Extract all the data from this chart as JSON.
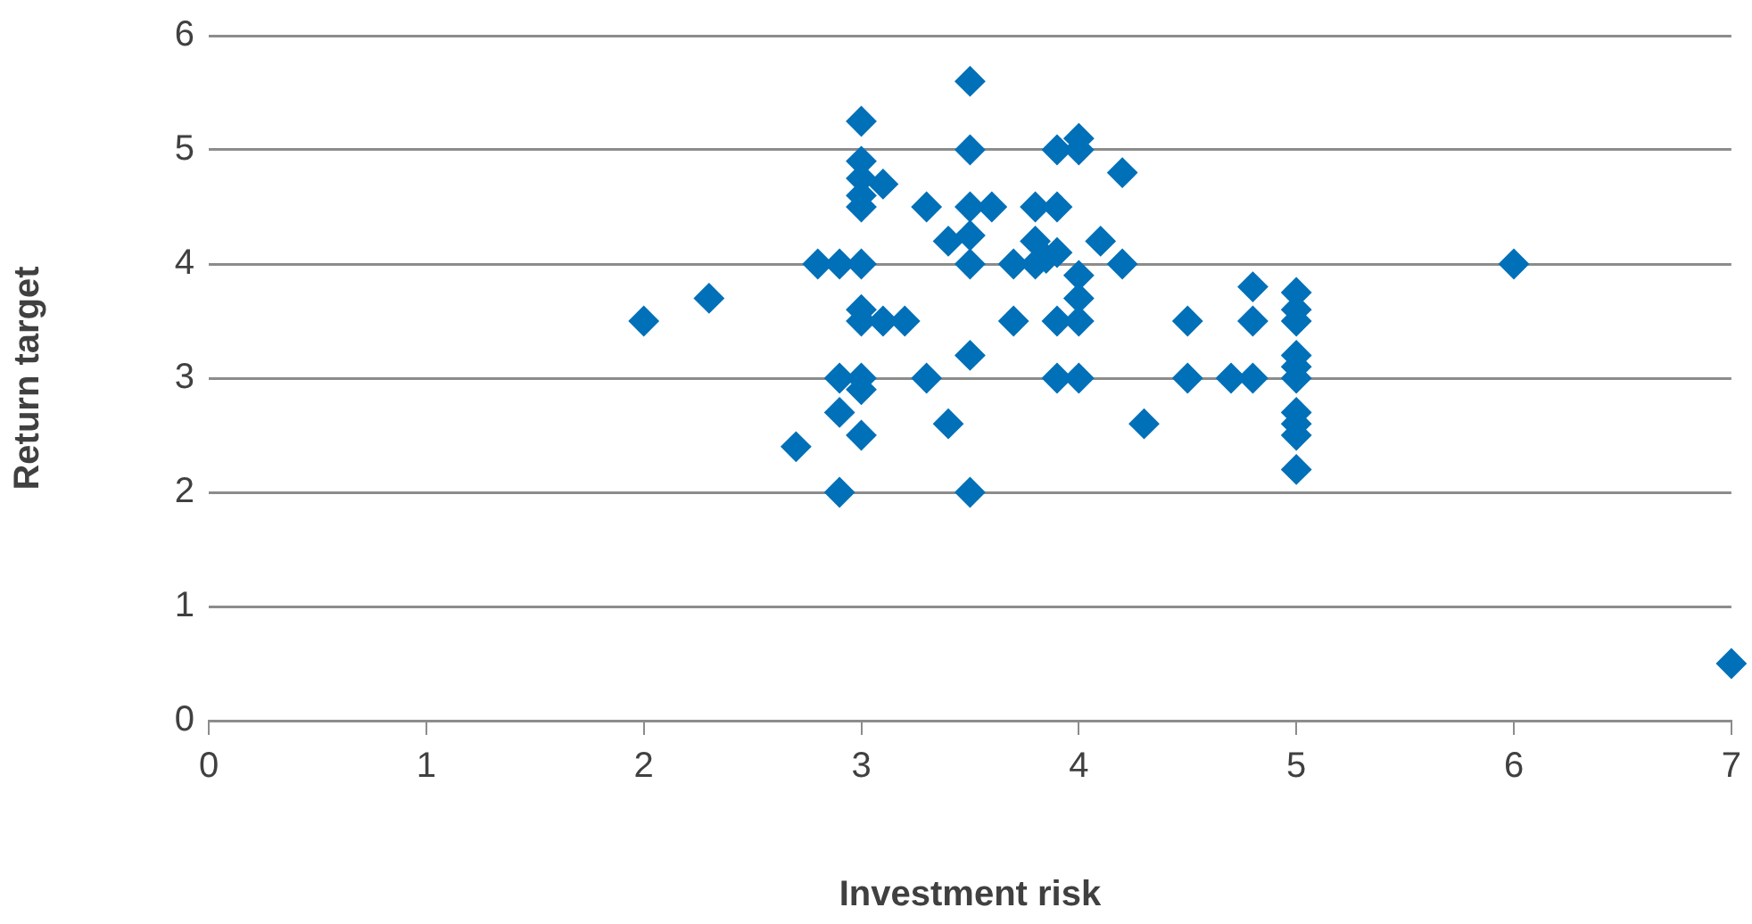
{
  "chart_data": {
    "type": "scatter",
    "xlabel": "Investment risk",
    "ylabel": "Return target",
    "xlim": [
      0,
      7
    ],
    "xticks": [
      0,
      1,
      2,
      3,
      4,
      5,
      6,
      7
    ],
    "ylim": [
      0,
      6
    ],
    "yticks": [
      0,
      1,
      2,
      3,
      4,
      5,
      6
    ],
    "grid": "y",
    "marker": "diamond",
    "legend": false,
    "series": [
      {
        "color": "#0070b8",
        "x": [
          2,
          2.3,
          2.7,
          2.8,
          2.9,
          2.9,
          2.9,
          2.9,
          3,
          3,
          3,
          3,
          3,
          3,
          3,
          3,
          3,
          3,
          3,
          3.1,
          3.1,
          3.2,
          3.3,
          3.3,
          3.4,
          3.4,
          3.5,
          3.5,
          3.5,
          3.5,
          3.5,
          3.5,
          3.5,
          3.6,
          3.7,
          3.7,
          3.8,
          3.8,
          3.8,
          3.85,
          3.9,
          3.9,
          3.9,
          3.9,
          3.9,
          4,
          4,
          4,
          4,
          4,
          4,
          4.1,
          4.2,
          4.2,
          4.3,
          4.5,
          4.5,
          4.7,
          4.8,
          4.8,
          4.8,
          5,
          5,
          5,
          5,
          5,
          5,
          5,
          5,
          5,
          5,
          6,
          7
        ],
        "values": [
          3.5,
          3.7,
          2.4,
          4,
          4,
          3,
          2.7,
          2,
          5.25,
          4.9,
          4.75,
          4.6,
          4.5,
          4,
          3.6,
          3.5,
          3,
          2.9,
          2.5,
          4.7,
          3.5,
          3.5,
          4.5,
          3,
          4.2,
          2.6,
          5.6,
          5,
          4.5,
          4.25,
          4,
          3.2,
          2,
          4.5,
          4,
          3.5,
          4.5,
          4.2,
          4,
          4.05,
          5,
          4.5,
          4.1,
          3.5,
          3,
          5.1,
          5,
          3.9,
          3.7,
          3.5,
          3,
          4.2,
          4.8,
          4,
          2.6,
          3.5,
          3,
          3,
          3.8,
          3.5,
          3,
          3.75,
          3.6,
          3.5,
          3.2,
          3.1,
          3,
          2.7,
          2.6,
          2.5,
          2.2,
          4,
          0.5
        ]
      }
    ]
  }
}
